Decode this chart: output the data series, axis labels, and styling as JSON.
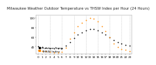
{
  "title": "Milwaukee Weather Outdoor Temperature vs THSW Index per Hour (24 Hours)",
  "background_color": "#ffffff",
  "grid_color": "#bbbbbb",
  "hours": [
    0,
    1,
    2,
    3,
    4,
    5,
    6,
    7,
    8,
    9,
    10,
    11,
    12,
    13,
    14,
    15,
    16,
    17,
    18,
    19,
    20,
    21,
    22,
    23
  ],
  "temp": [
    40,
    39,
    38,
    37,
    36,
    36,
    37,
    42,
    50,
    58,
    65,
    70,
    74,
    76,
    76,
    74,
    70,
    65,
    59,
    53,
    49,
    46,
    44,
    42
  ],
  "thsw": [
    32,
    31,
    30,
    29,
    28,
    28,
    29,
    38,
    56,
    70,
    82,
    90,
    96,
    99,
    98,
    92,
    83,
    72,
    59,
    46,
    39,
    35,
    33,
    31
  ],
  "temp_color": "#000000",
  "thsw_color": "#ff4400",
  "thsw_color2": "#ff8800",
  "marker_size": 1.5,
  "ylim": [
    25,
    105
  ],
  "yticks": [
    40,
    60,
    80,
    100
  ],
  "ytick_labels": [
    "40",
    "60",
    "80",
    "100"
  ],
  "legend_temp": "Outdoor Temp",
  "legend_thsw": "THSW Index",
  "title_fontsize": 3.8,
  "tick_fontsize": 3.0,
  "legend_fontsize": 3.2,
  "grid_hours": [
    0,
    3,
    6,
    9,
    12,
    15,
    18,
    21,
    23
  ]
}
